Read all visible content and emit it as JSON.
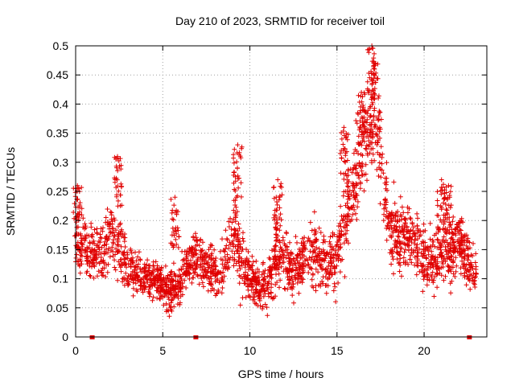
{
  "chart_data": {
    "type": "scatter",
    "title": "Day 210 of 2023, SRMTID for receiver toil",
    "xlabel": "GPS time / hours",
    "ylabel": "SRMTID / TECUs",
    "xlim": [
      0,
      23.6
    ],
    "ylim": [
      0,
      0.5
    ],
    "xticks": [
      0,
      5,
      10,
      15,
      20
    ],
    "yticks": [
      0,
      0.05,
      0.1,
      0.15,
      0.2,
      0.25,
      0.3,
      0.35,
      0.4,
      0.45,
      0.5
    ],
    "ytick_labels": [
      "0",
      "0.05",
      "0.1",
      "0.15",
      "0.2",
      "0.25",
      "0.3",
      "0.35",
      "0.4",
      "0.45",
      "0.5"
    ],
    "grid": true,
    "legend": "none",
    "color": "#e00000",
    "marker": "plus",
    "gap_markers_x": [
      0.95,
      6.9,
      22.6
    ],
    "series": [
      {
        "profile_x": [
          0,
          0.5,
          1,
          1.5,
          2,
          2.5,
          3,
          3.5,
          4,
          4.5,
          5,
          5.5,
          6,
          6.5,
          7,
          7.5,
          8,
          8.5,
          9,
          9.5,
          10,
          10.5,
          11,
          11.5,
          12,
          12.5,
          13,
          13.5,
          14,
          14.5,
          15,
          15.5,
          16,
          16.5,
          17,
          17.5,
          18,
          18.5,
          19,
          19.5,
          20,
          20.5,
          21,
          21.5,
          22,
          22.5,
          23
        ],
        "profile_y": [
          0.16,
          0.16,
          0.14,
          0.15,
          0.17,
          0.16,
          0.12,
          0.11,
          0.1,
          0.1,
          0.09,
          0.08,
          0.09,
          0.13,
          0.14,
          0.12,
          0.11,
          0.12,
          0.19,
          0.13,
          0.1,
          0.09,
          0.09,
          0.13,
          0.14,
          0.11,
          0.13,
          0.14,
          0.15,
          0.12,
          0.15,
          0.2,
          0.27,
          0.33,
          0.37,
          0.32,
          0.19,
          0.17,
          0.17,
          0.16,
          0.14,
          0.13,
          0.14,
          0.15,
          0.16,
          0.13,
          0.11
        ],
        "profile_spread": [
          0.04,
          0.045,
          0.04,
          0.04,
          0.05,
          0.045,
          0.035,
          0.035,
          0.03,
          0.03,
          0.03,
          0.03,
          0.03,
          0.035,
          0.04,
          0.035,
          0.035,
          0.04,
          0.06,
          0.045,
          0.035,
          0.035,
          0.035,
          0.045,
          0.045,
          0.04,
          0.045,
          0.045,
          0.05,
          0.05,
          0.055,
          0.06,
          0.07,
          0.07,
          0.07,
          0.07,
          0.06,
          0.05,
          0.045,
          0.045,
          0.045,
          0.045,
          0.045,
          0.045,
          0.045,
          0.04,
          0.04
        ],
        "peaks": [
          {
            "x": 0.1,
            "y": 0.26
          },
          {
            "x": 2.4,
            "y": 0.31
          },
          {
            "x": 5.7,
            "y": 0.24
          },
          {
            "x": 9.3,
            "y": 0.33
          },
          {
            "x": 11.6,
            "y": 0.27
          },
          {
            "x": 15.4,
            "y": 0.36
          },
          {
            "x": 16.4,
            "y": 0.42
          },
          {
            "x": 17.0,
            "y": 0.5
          },
          {
            "x": 17.2,
            "y": 0.47
          },
          {
            "x": 21.0,
            "y": 0.27
          },
          {
            "x": 21.4,
            "y": 0.26
          }
        ]
      }
    ]
  }
}
